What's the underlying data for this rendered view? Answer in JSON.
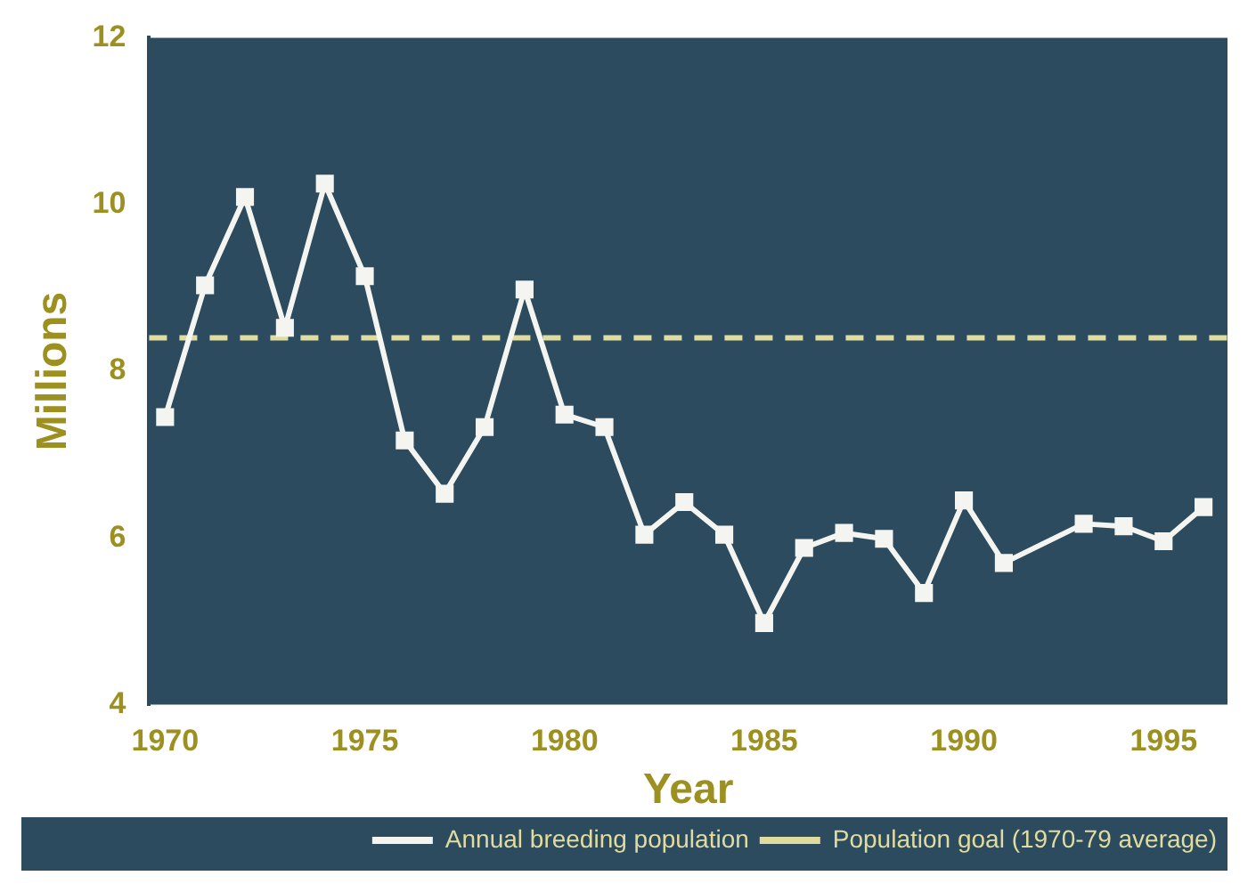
{
  "chart_data": {
    "type": "line",
    "xlabel": "Year",
    "ylabel": "Millions",
    "x": [
      1970,
      1971,
      1972,
      1973,
      1974,
      1975,
      1976,
      1977,
      1978,
      1979,
      1980,
      1981,
      1982,
      1983,
      1984,
      1985,
      1986,
      1987,
      1988,
      1989,
      1990,
      1991,
      1993,
      1994,
      1995,
      1996
    ],
    "series": [
      {
        "name": "Annual breeding population",
        "color": "#f4f4f0",
        "values": [
          7.45,
          9.03,
          10.09,
          8.52,
          10.25,
          9.14,
          7.17,
          6.53,
          7.33,
          8.98,
          7.48,
          7.33,
          6.04,
          6.43,
          6.04,
          4.98,
          5.88,
          6.06,
          5.99,
          5.34,
          6.45,
          5.7,
          6.17,
          6.14,
          5.96,
          6.37
        ]
      }
    ],
    "ref_lines": [
      {
        "axis": "y",
        "value": 8.4,
        "label": "Population goal (1970-79 average)",
        "color": "#e0dca0",
        "line_style": "dashed"
      }
    ],
    "xlim": [
      1969.6,
      1996.6
    ],
    "xticks": [
      1970,
      1975,
      1980,
      1985,
      1990,
      1995
    ],
    "ylim": [
      4,
      12
    ],
    "yticks": [
      4,
      6,
      8,
      10,
      12
    ],
    "grid": false,
    "legend": "bottom right",
    "marker": "square",
    "line_style": "solid"
  }
}
